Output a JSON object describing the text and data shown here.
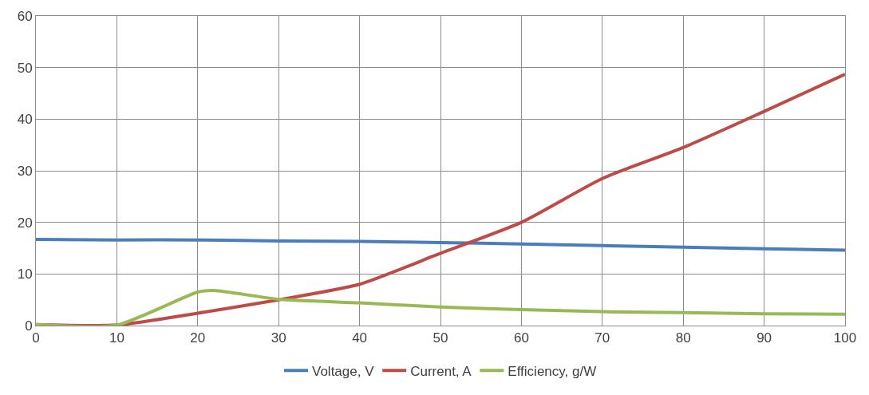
{
  "chart_data": {
    "type": "line",
    "x": [
      0,
      10,
      20,
      30,
      40,
      50,
      60,
      70,
      80,
      90,
      100
    ],
    "series": [
      {
        "name": "Voltage, V",
        "color": "#4a7ebb",
        "values": [
          16.7,
          16.6,
          16.6,
          16.4,
          16.3,
          16.1,
          15.8,
          15.5,
          15.2,
          14.9,
          14.6
        ]
      },
      {
        "name": "Current, A",
        "color": "#be4b48",
        "values": [
          0.2,
          0.1,
          2.4,
          5,
          8,
          14,
          20,
          28.5,
          34.5,
          41.5,
          48.7
        ]
      },
      {
        "name": "Efficiency, g/W",
        "color": "#98b954",
        "x": [
          0,
          10,
          20,
          22,
          30,
          40,
          50,
          60,
          70,
          80,
          90,
          100
        ],
        "values": [
          0.2,
          0.1,
          6.5,
          6.8,
          5.1,
          4.4,
          3.6,
          3.1,
          2.7,
          2.5,
          2.3,
          2.2
        ]
      }
    ],
    "xlim": [
      0,
      100
    ],
    "xticks": [
      0,
      10,
      20,
      30,
      40,
      50,
      60,
      70,
      80,
      90,
      100
    ],
    "ylim": [
      0,
      60
    ],
    "yticks": [
      0,
      10,
      20,
      30,
      40,
      50,
      60
    ],
    "grid": true,
    "legend": "bottom",
    "marker": "none",
    "line_style": "solid"
  }
}
